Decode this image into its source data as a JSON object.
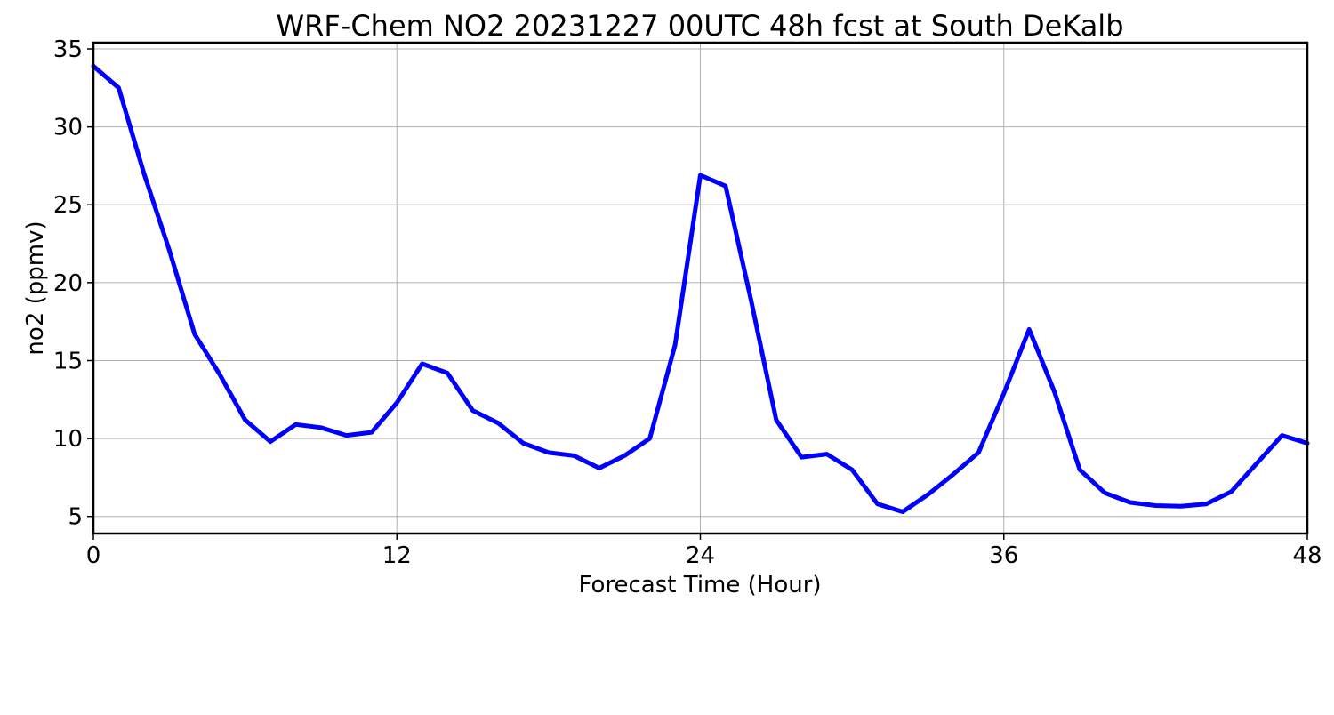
{
  "chart_data": {
    "type": "line",
    "title": "WRF-Chem NO2  20231227 00UTC 48h fcst at South DeKalb",
    "xlabel": "Forecast Time (Hour)",
    "ylabel": "no2  (ppmv)",
    "xlim": [
      0,
      48
    ],
    "ylim": [
      3.9,
      35.4
    ],
    "xticks": [
      0,
      12,
      24,
      36,
      48
    ],
    "yticks": [
      5,
      10,
      15,
      20,
      25,
      30,
      35
    ],
    "grid": true,
    "line_color": "#0000ff",
    "x": [
      0,
      1,
      2,
      3,
      4,
      5,
      6,
      7,
      8,
      9,
      10,
      11,
      12,
      13,
      14,
      15,
      16,
      17,
      18,
      19,
      20,
      21,
      22,
      23,
      24,
      25,
      26,
      27,
      28,
      29,
      30,
      31,
      32,
      33,
      34,
      35,
      36,
      37,
      38,
      39,
      40,
      41,
      42,
      43,
      44,
      45,
      46,
      47,
      48
    ],
    "series": [
      {
        "values": [
          33.9,
          32.5,
          27.0,
          22.1,
          16.7,
          14.1,
          11.2,
          9.8,
          10.9,
          10.7,
          10.2,
          10.4,
          12.3,
          14.8,
          14.2,
          11.8,
          11.0,
          9.7,
          9.1,
          8.9,
          8.1,
          8.9,
          10.0,
          16.0,
          26.9,
          26.2,
          18.9,
          11.2,
          8.8,
          9.0,
          8.0,
          5.8,
          5.3,
          6.4,
          7.7,
          9.1,
          12.9,
          17.0,
          13.0,
          8.0,
          6.5,
          5.9,
          5.7,
          5.65,
          5.8,
          6.6,
          8.4,
          10.2,
          9.7
        ]
      }
    ]
  }
}
